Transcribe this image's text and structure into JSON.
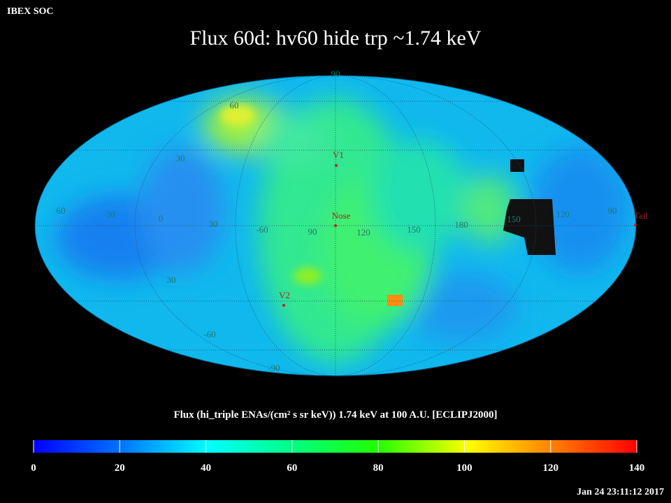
{
  "header": {
    "org": "IBEX SOC",
    "title": "Flux   60d: hv60 hide trp ~1.74 keV"
  },
  "map": {
    "grid_labels": [
      "90",
      "60",
      "30",
      "60",
      "30",
      "0",
      "30",
      "-60",
      "90",
      "120",
      "150",
      "180",
      "150",
      "120",
      "90",
      "30",
      "-60",
      "-90"
    ],
    "markers": [
      "V1",
      "Nose",
      "V2",
      "Tail"
    ]
  },
  "colorbar": {
    "label": "Flux (hi_triple ENAs/(cm² s sr keV))  1.74 keV at 100 A.U. [ECLIPJ2000]",
    "range": [
      0,
      140
    ],
    "ticks": [
      0,
      20,
      40,
      60,
      80,
      100,
      120,
      140
    ]
  },
  "footer": {
    "timestamp": "Jan 24 23:11:12 2017"
  }
}
